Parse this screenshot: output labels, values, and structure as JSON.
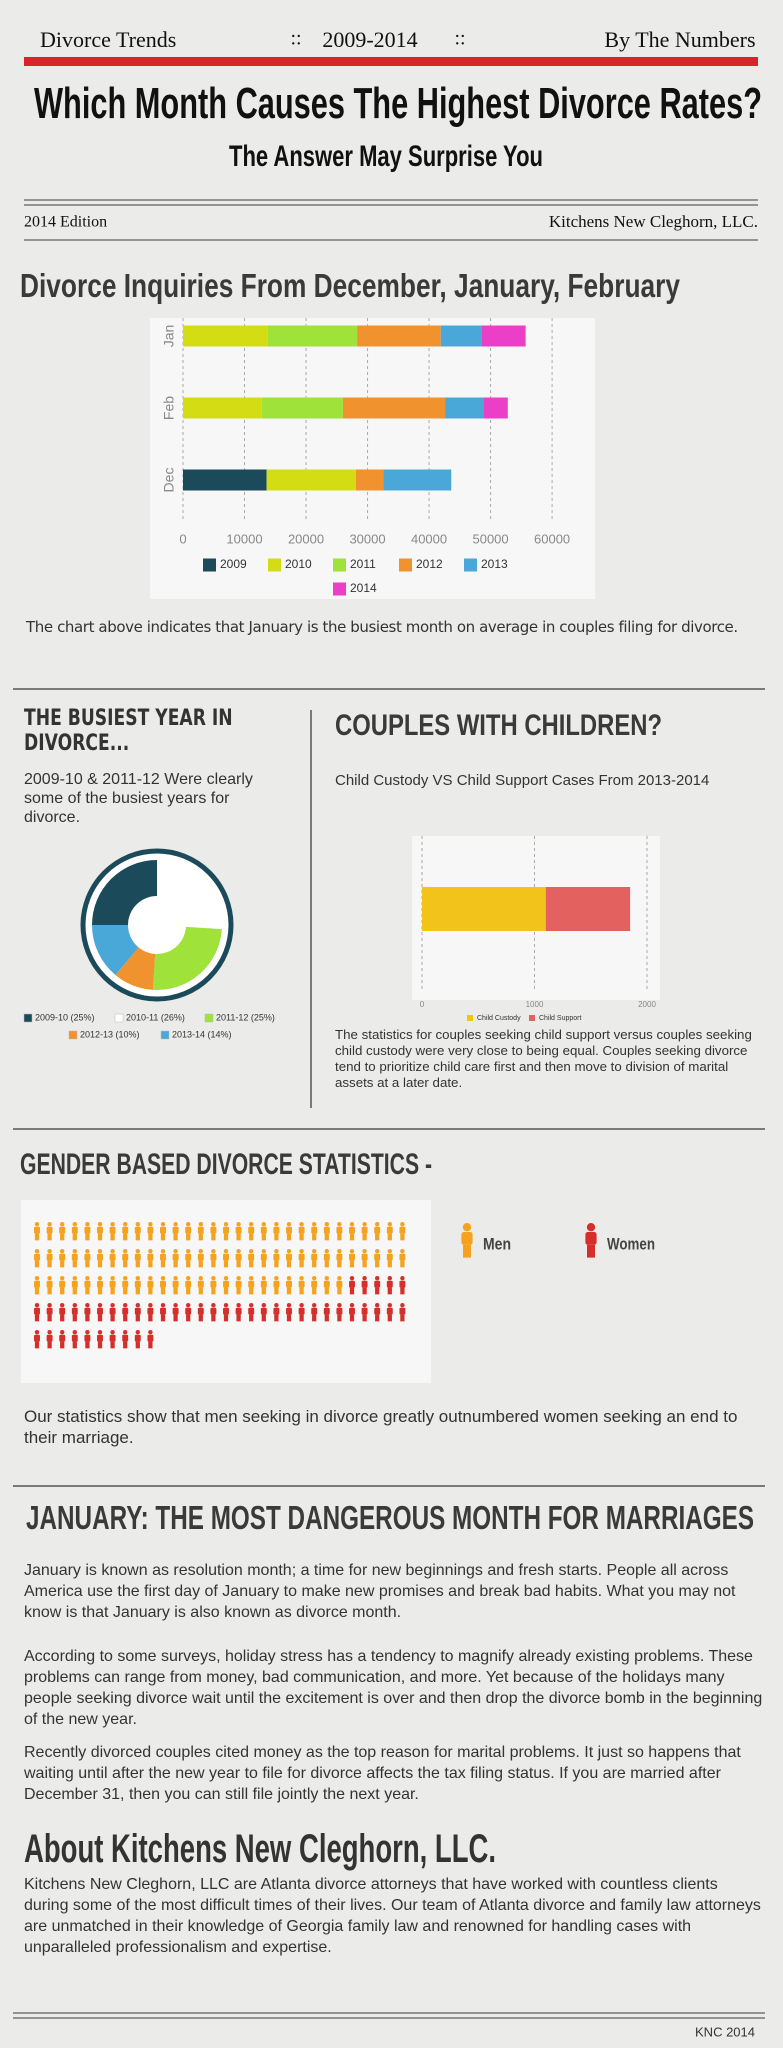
{
  "header": {
    "topline": [
      "Divorce Trends",
      "2009-2014",
      "By The Numbers"
    ],
    "separator": "::",
    "title": "Which Month Causes The Highest Divorce Rates?",
    "subtitle": "The Answer May Surprise You",
    "edition": "2014 Edition",
    "publisher": "Kitchens New Cleghorn, LLC."
  },
  "chart_data": [
    {
      "type": "bar",
      "orientation": "horizontal",
      "stacked": true,
      "title": "Divorce Inquiries From December, January, February",
      "categories": [
        "Jan",
        "Feb",
        "Dec"
      ],
      "series": [
        {
          "name": "2009",
          "color": "#1b4a5a",
          "values": [
            0,
            0,
            13600
          ]
        },
        {
          "name": "2010",
          "color": "#d4dc14",
          "values": [
            13800,
            12800,
            14500
          ]
        },
        {
          "name": "2011",
          "color": "#9ee23a",
          "values": [
            14500,
            13200,
            0
          ]
        },
        {
          "name": "2012",
          "color": "#f0922e",
          "values": [
            13600,
            16600,
            4500
          ]
        },
        {
          "name": "2013",
          "color": "#4aa8d8",
          "values": [
            6600,
            6200,
            11000
          ]
        },
        {
          "name": "2014",
          "color": "#ec3fc8",
          "values": [
            7200,
            4000,
            0
          ]
        }
      ],
      "xlim": [
        0,
        66000
      ],
      "xticks": [
        0,
        10000,
        20000,
        30000,
        40000,
        50000,
        60000
      ],
      "grid": true,
      "legend": "bottom",
      "caption": "The chart above indicates that January is the busiest month on average in couples filing for divorce."
    },
    {
      "type": "pie",
      "donut": true,
      "title": "THE BUSIEST YEAR IN DIVORCE...",
      "subtitle": "2009-10 & 2011-12 Were clearly some of the busiest years for divorce.",
      "categories": [
        "2009-10 (25%)",
        "2010-11 (26%)",
        "2011-12 (25%)",
        "2012-13 (10%)",
        "2013-14 (14%)"
      ],
      "values": [
        25,
        26,
        25,
        10,
        14
      ],
      "colors": [
        "#1b4a5a",
        "#ffffff",
        "#9ee23a",
        "#f0922e",
        "#4aa8d8"
      ],
      "legend": "bottom"
    },
    {
      "type": "bar",
      "orientation": "horizontal",
      "stacked": true,
      "title": "COUPLES WITH CHILDREN?",
      "subtitle": "Child Custody VS Child Support Cases From 2013-2014",
      "categories": [
        null
      ],
      "series": [
        {
          "name": "Child Custody",
          "color": "#f2c31a",
          "values": [
            1100
          ]
        },
        {
          "name": "Child Support",
          "color": "#e3625f",
          "values": [
            750
          ]
        }
      ],
      "xlim": [
        0,
        2000
      ],
      "xticks": [
        0,
        1000,
        2000
      ],
      "grid": true,
      "legend": "bottom",
      "caption": "The statistics for couples seeking child support versus couples seeking child custody were very close to being equal. Couples seeking divorce tend to prioritize child care first and then move to division of marital assets at a later date."
    },
    {
      "type": "pictogram",
      "title": "GENDER BASED DIVORCE STATISTICS -",
      "series": [
        {
          "name": "Men",
          "color": "#f5a21e",
          "values": [
            85
          ]
        },
        {
          "name": "Women",
          "color": "#d42f2a",
          "values": [
            45
          ]
        }
      ],
      "legend": "right",
      "caption": "Our statistics show that men seeking in divorce greatly outnumbered women seeking an end to their marriage."
    }
  ],
  "article": {
    "title": "JANUARY: THE MOST DANGEROUS MONTH FOR MARRIAGES",
    "paragraphs": [
      "January is known as resolution month; a time for new beginnings and fresh starts. People all across America use the first day of January to make new promises and break bad habits.  What you may not know is that January is also known as divorce month.",
      "According to some surveys, holiday stress has a tendency to magnify already existing problems. These problems can range from money, bad communication, and more. Yet because of the holidays many people seeking divorce wait until the excitement is over and then drop the divorce bomb in the beginning of the new year.",
      "Recently divorced couples cited money as the top reason for marital problems. It just so happens that waiting until after the new year to file for divorce affects the tax filing status.  If you are married after December 31, then you can still file jointly the next year."
    ]
  },
  "about": {
    "title": "About Kitchens New Cleghorn, LLC.",
    "paragraph": "Kitchens New Cleghorn, LLC are Atlanta divorce attorneys that have worked with countless clients during some of the most difficult times of their lives. Our team of Atlanta divorce and family law attorneys are unmatched in their knowledge of Georgia family law and renowned for handling cases with unparalleled professionalism and expertise."
  },
  "footer": "KNC 2014"
}
